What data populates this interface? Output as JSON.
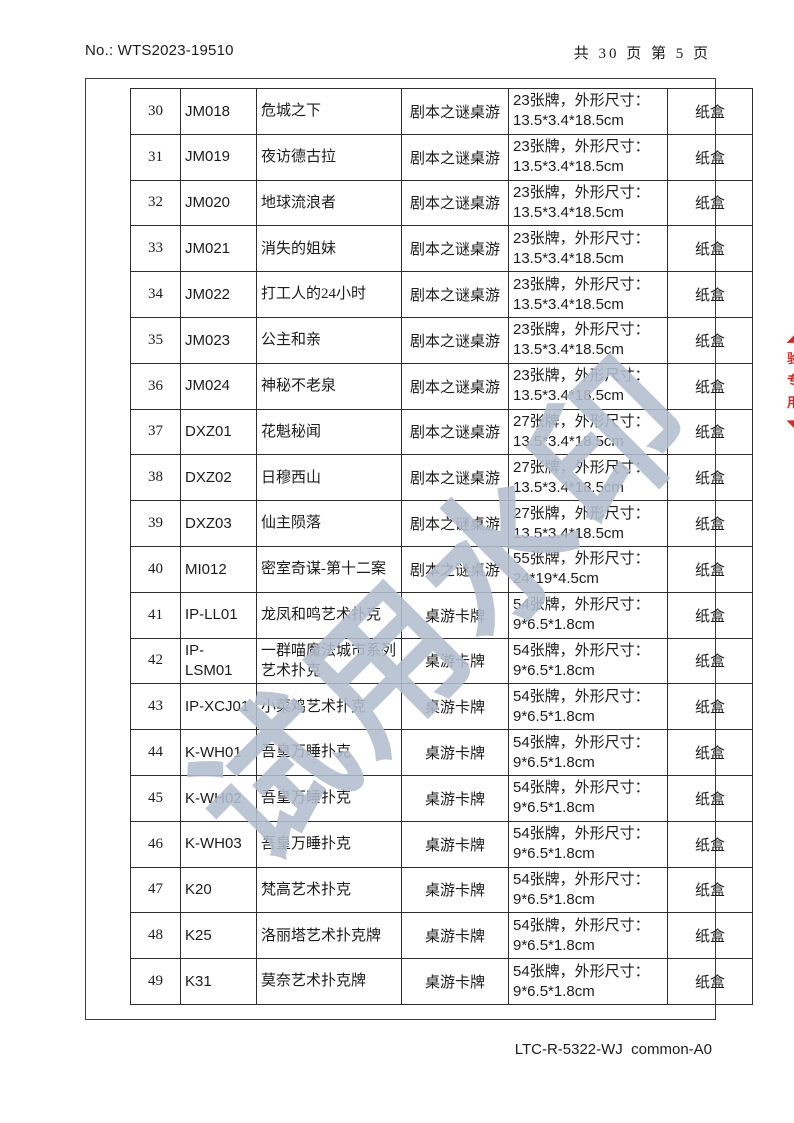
{
  "header": {
    "doc_no": "No.: WTS2023-19510",
    "page_info": "共 30 页 第 5 页"
  },
  "footer": {
    "code": "LTC-R-5322-WJ  common-A0"
  },
  "watermark": {
    "text": "试用水印",
    "color": "#b2bdce"
  },
  "edge_stamp": {
    "color": "#d42a2a",
    "fragments": [
      "◢",
      "验",
      "专",
      "用",
      "◥"
    ]
  },
  "table": {
    "rows": [
      {
        "no": "30",
        "code": "JM018",
        "name": "危城之下",
        "category": "剧本之谜桌游",
        "spec_line1": "23张牌，外形尺寸：",
        "spec_line2": "13.5*3.4*18.5cm",
        "material": "纸盒"
      },
      {
        "no": "31",
        "code": "JM019",
        "name": "夜访德古拉",
        "category": "剧本之谜桌游",
        "spec_line1": "23张牌，外形尺寸：",
        "spec_line2": "13.5*3.4*18.5cm",
        "material": "纸盒"
      },
      {
        "no": "32",
        "code": "JM020",
        "name": "地球流浪者",
        "category": "剧本之谜桌游",
        "spec_line1": "23张牌，外形尺寸：",
        "spec_line2": "13.5*3.4*18.5cm",
        "material": "纸盒"
      },
      {
        "no": "33",
        "code": "JM021",
        "name": "消失的姐妹",
        "category": "剧本之谜桌游",
        "spec_line1": "23张牌，外形尺寸：",
        "spec_line2": "13.5*3.4*18.5cm",
        "material": "纸盒"
      },
      {
        "no": "34",
        "code": "JM022",
        "name": "打工人的24小时",
        "category": "剧本之谜桌游",
        "spec_line1": "23张牌，外形尺寸：",
        "spec_line2": "13.5*3.4*18.5cm",
        "material": "纸盒"
      },
      {
        "no": "35",
        "code": "JM023",
        "name": "公主和亲",
        "category": "剧本之谜桌游",
        "spec_line1": "23张牌，外形尺寸：",
        "spec_line2": "13.5*3.4*18.5cm",
        "material": "纸盒"
      },
      {
        "no": "36",
        "code": "JM024",
        "name": "神秘不老泉",
        "category": "剧本之谜桌游",
        "spec_line1": "23张牌，外形尺寸：",
        "spec_line2": "13.5*3.4*18.5cm",
        "material": "纸盒"
      },
      {
        "no": "37",
        "code": "DXZ01",
        "name": "花魁秘闻",
        "category": "剧本之谜桌游",
        "spec_line1": "27张牌，外形尺寸：",
        "spec_line2": "13.5*3.4*18.5cm",
        "material": "纸盒"
      },
      {
        "no": "38",
        "code": "DXZ02",
        "name": "日穆西山",
        "category": "剧本之谜桌游",
        "spec_line1": "27张牌，外形尺寸：",
        "spec_line2": "13.5*3.4*18.5cm",
        "material": "纸盒"
      },
      {
        "no": "39",
        "code": "DXZ03",
        "name": "仙主陨落",
        "category": "剧本之谜桌游",
        "spec_line1": "27张牌，外形尺寸：",
        "spec_line2": "13.5*3.4*18.5cm",
        "material": "纸盒"
      },
      {
        "no": "40",
        "code": "MI012",
        "name": "密室奇谋-第十二案",
        "category": "剧本之谜桌游",
        "spec_line1": "55张牌，外形尺寸：",
        "spec_line2": "24*19*4.5cm",
        "material": "纸盒"
      },
      {
        "no": "41",
        "code": "IP-LL01",
        "name": "龙凤和鸣艺术扑克",
        "category": "桌游卡牌",
        "spec_line1": "54张牌，外形尺寸：",
        "spec_line2": "9*6.5*1.8cm",
        "material": "纸盒"
      },
      {
        "no": "42",
        "code": "IP-\nLSM01",
        "name": "一群喵魔法城市系列\n艺术扑克",
        "category": "桌游卡牌",
        "spec_line1": "54张牌，外形尺寸：",
        "spec_line2": "9*6.5*1.8cm",
        "material": "纸盒"
      },
      {
        "no": "43",
        "code": "IP-XCJ01",
        "name": "小菜鸡艺术扑克",
        "category": "桌游卡牌",
        "spec_line1": "54张牌，外形尺寸：",
        "spec_line2": "9*6.5*1.8cm",
        "material": "纸盒"
      },
      {
        "no": "44",
        "code": "K-WH01",
        "name": "吾皇万睡扑克",
        "category": "桌游卡牌",
        "spec_line1": "54张牌，外形尺寸：",
        "spec_line2": "9*6.5*1.8cm",
        "material": "纸盒"
      },
      {
        "no": "45",
        "code": "K-WH02",
        "name": "吾皇万睡扑克",
        "category": "桌游卡牌",
        "spec_line1": "54张牌，外形尺寸：",
        "spec_line2": "9*6.5*1.8cm",
        "material": "纸盒"
      },
      {
        "no": "46",
        "code": "K-WH03",
        "name": "吾皇万睡扑克",
        "category": "桌游卡牌",
        "spec_line1": "54张牌，外形尺寸：",
        "spec_line2": "9*6.5*1.8cm",
        "material": "纸盒"
      },
      {
        "no": "47",
        "code": "K20",
        "name": "梵高艺术扑克",
        "category": "桌游卡牌",
        "spec_line1": "54张牌，外形尺寸：",
        "spec_line2": "9*6.5*1.8cm",
        "material": "纸盒"
      },
      {
        "no": "48",
        "code": "K25",
        "name": "洛丽塔艺术扑克牌",
        "category": "桌游卡牌",
        "spec_line1": "54张牌，外形尺寸：",
        "spec_line2": "9*6.5*1.8cm",
        "material": "纸盒"
      },
      {
        "no": "49",
        "code": "K31",
        "name": "莫奈艺术扑克牌",
        "category": "桌游卡牌",
        "spec_line1": "54张牌，外形尺寸：",
        "spec_line2": "9*6.5*1.8cm",
        "material": "纸盒"
      }
    ]
  }
}
